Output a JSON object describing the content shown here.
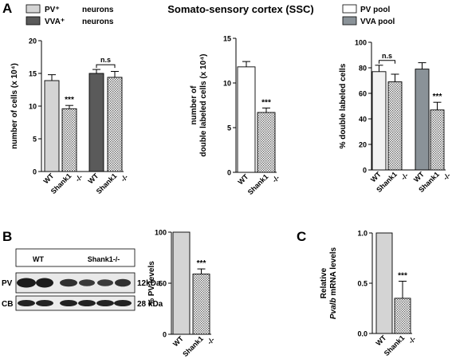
{
  "figure": {
    "title": "Somato-sensory cortex (SSC)",
    "panel_labels": [
      "A",
      "B",
      "C"
    ]
  },
  "legends": {
    "left": {
      "items": [
        {
          "label": "PV⁺",
          "suffix": "neurons",
          "fill": "#d4d4d4"
        },
        {
          "label": "VVA⁺",
          "suffix": "neurons",
          "fill": "#5a5a5a"
        }
      ]
    },
    "right": {
      "items": [
        {
          "label": "PV pool",
          "fill": "#ffffff"
        },
        {
          "label": "VVA pool",
          "fill": "#8a9298"
        }
      ]
    }
  },
  "blot": {
    "group_labels": [
      "WT",
      "Shank1-/-"
    ],
    "rows": [
      {
        "name": "PV",
        "size": "12kDa"
      },
      {
        "name": "CB",
        "size": "28 kDa"
      }
    ]
  },
  "chart_data": [
    {
      "id": "A1",
      "type": "bar",
      "ylabel": "number of cells (x 10⁴)",
      "ylim": [
        0,
        20
      ],
      "yticks": [
        0,
        5,
        10,
        15,
        20
      ],
      "categories": [
        "WT",
        "Shank1 -/-",
        "WT",
        "Shank1 -/-"
      ],
      "values": [
        13.9,
        9.6,
        15.0,
        14.4
      ],
      "errors": [
        0.9,
        0.5,
        0.6,
        0.9
      ],
      "fills": [
        "#d4d4d4",
        "hatch",
        "#5a5a5a",
        "hatch"
      ],
      "annotations": [
        {
          "bar": 1,
          "text": "***"
        },
        {
          "bracket": [
            2,
            3
          ],
          "text": "n.s"
        }
      ]
    },
    {
      "id": "A2",
      "type": "bar",
      "ylabel": "number of\ndouble labeled cells (x 10⁴)",
      "ylim": [
        0,
        15
      ],
      "yticks": [
        0,
        5,
        10,
        15
      ],
      "categories": [
        "WT",
        "Shank1 -/-"
      ],
      "values": [
        11.8,
        6.7
      ],
      "errors": [
        0.6,
        0.5
      ],
      "fills": [
        "#ffffff",
        "hatch"
      ],
      "annotations": [
        {
          "bar": 1,
          "text": "***"
        }
      ]
    },
    {
      "id": "A3",
      "type": "bar",
      "ylabel": "% double labeled cells",
      "ylim": [
        0,
        100
      ],
      "yticks": [
        0,
        20,
        40,
        60,
        80,
        100
      ],
      "categories": [
        "WT",
        "Shank1 -/-",
        "WT",
        "Shank1 -/-"
      ],
      "values": [
        77,
        69,
        79,
        47
      ],
      "errors": [
        5,
        6,
        5,
        6
      ],
      "fills": [
        "#f2f2f2",
        "hatch",
        "#8a9298",
        "hatch"
      ],
      "annotations": [
        {
          "bracket": [
            0,
            1
          ],
          "text": "n.s"
        },
        {
          "bar": 3,
          "text": "***"
        }
      ]
    },
    {
      "id": "B",
      "type": "bar",
      "ylabel": "% PV levels",
      "ylim": [
        0,
        100
      ],
      "yticks": [
        0,
        50,
        100
      ],
      "categories": [
        "WT",
        "Shank1 -/-"
      ],
      "values": [
        100,
        59
      ],
      "errors": [
        0,
        5
      ],
      "fills": [
        "#d4d4d4",
        "hatch"
      ],
      "annotations": [
        {
          "bar": 1,
          "text": "***"
        }
      ]
    },
    {
      "id": "C",
      "type": "bar",
      "ylabel": "Relative\nPvalb mRNA levels",
      "ylabel_italic_word": "Pvalb",
      "ylim": [
        0,
        1
      ],
      "yticks": [
        0.0,
        0.5,
        1.0
      ],
      "yticklabels": [
        "0.0",
        "0.5",
        "1.0"
      ],
      "categories": [
        "WT",
        "Shank1 -/-"
      ],
      "values": [
        1.0,
        0.35
      ],
      "errors": [
        0,
        0.17
      ],
      "fills": [
        "#d4d4d4",
        "hatch"
      ],
      "annotations": [
        {
          "bar": 1,
          "text": "***"
        }
      ]
    }
  ]
}
